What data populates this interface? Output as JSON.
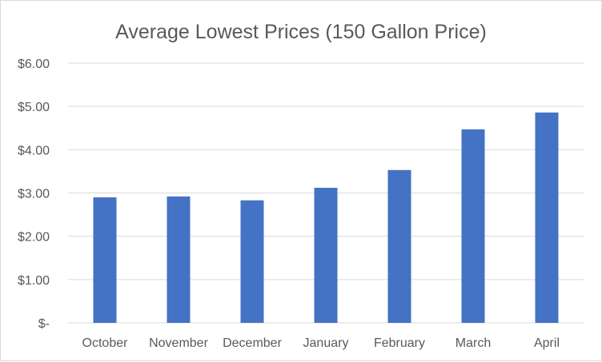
{
  "chart_data": {
    "type": "bar",
    "title": "Average Lowest Prices (150 Gallon Price)",
    "xlabel": "",
    "ylabel": "",
    "categories": [
      "October",
      "November",
      "December",
      "January",
      "February",
      "March",
      "April"
    ],
    "values": [
      2.9,
      2.92,
      2.83,
      3.12,
      3.53,
      4.47,
      4.86
    ],
    "ylim": [
      0,
      6
    ],
    "yticks": [
      0,
      1,
      2,
      3,
      4,
      5,
      6
    ],
    "ytick_labels": [
      "$-",
      "$1.00",
      "$2.00",
      "$3.00",
      "$4.00",
      "$5.00",
      "$6.00"
    ],
    "grid": true,
    "legend": "none",
    "colors": {
      "bar": "#4472c4",
      "grid": "#d9d9d9",
      "text": "#595959"
    }
  }
}
